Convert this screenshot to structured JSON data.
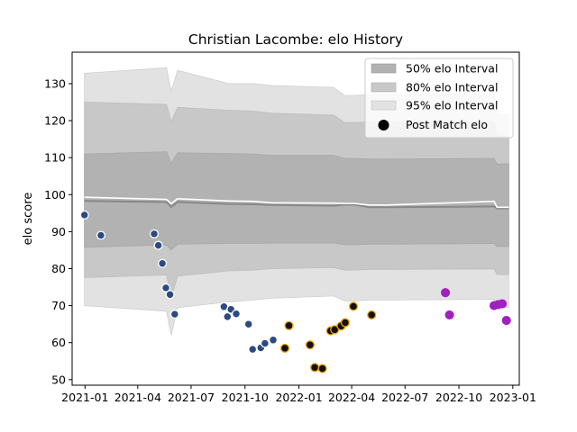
{
  "chart_data": {
    "type": "scatter",
    "title": "Christian Lacombe: elo History",
    "xlabel": "",
    "ylabel": "elo score",
    "xlim": [
      "2020-12-10",
      "2023-01-12"
    ],
    "ylim": [
      48.5,
      138.5
    ],
    "x_ticks": [
      "2021-01",
      "2021-04",
      "2021-07",
      "2021-10",
      "2022-01",
      "2022-04",
      "2022-07",
      "2022-10",
      "2023-01"
    ],
    "y_ticks": [
      50,
      60,
      70,
      80,
      90,
      100,
      110,
      120,
      130
    ],
    "grid": false,
    "legend_position": "top-right",
    "legend": [
      "50% elo Interval",
      "80% elo Interval",
      "95% elo Interval",
      "Post Match elo"
    ],
    "colors": {
      "band50": "#b2b2b2",
      "band80": "#c8c8c8",
      "band95": "#e2e2e2",
      "mean_line": "#888888",
      "upper_line": "#ffffff",
      "season1": "#2c4a80",
      "season2_fill": "#111111",
      "season2_edge": "#f0a000",
      "season3": "#a020c0"
    },
    "series": [
      {
        "name": "50% elo Interval",
        "kind": "band",
        "x": [
          "2020-12-31",
          "2021-05-20",
          "2021-05-28",
          "2021-06-08",
          "2021-09-03",
          "2021-10-15",
          "2021-11-15",
          "2022-03-01",
          "2022-03-20",
          "2022-04-05",
          "2022-05-01",
          "2022-06-01",
          "2022-11-30",
          "2022-12-05",
          "2022-12-25"
        ],
        "lower": [
          85.8,
          86.4,
          85.0,
          86.6,
          86.8,
          86.8,
          86.9,
          86.9,
          86.5,
          86.5,
          86.6,
          86.6,
          86.8,
          86.0,
          86.0
        ],
        "upper": [
          111.0,
          111.6,
          108.5,
          111.3,
          111.1,
          111.0,
          110.6,
          110.6,
          109.8,
          109.8,
          109.6,
          109.6,
          109.8,
          108.3,
          108.3
        ]
      },
      {
        "name": "80% elo Interval",
        "kind": "band",
        "x": [
          "2020-12-31",
          "2021-05-20",
          "2021-05-28",
          "2021-06-08",
          "2021-09-03",
          "2021-10-15",
          "2021-11-15",
          "2022-03-01",
          "2022-03-20",
          "2022-04-05",
          "2022-05-01",
          "2022-06-01",
          "2022-11-30",
          "2022-12-05",
          "2022-12-25"
        ],
        "lower": [
          77.6,
          78.3,
          72.0,
          78.0,
          79.4,
          79.6,
          80.0,
          80.3,
          79.6,
          79.6,
          79.8,
          79.8,
          79.9,
          78.4,
          78.4
        ],
        "upper": [
          125.0,
          124.4,
          119.8,
          123.6,
          122.8,
          122.6,
          122.0,
          121.5,
          119.5,
          119.5,
          119.6,
          119.6,
          119.8,
          115.8,
          115.8
        ]
      },
      {
        "name": "95% elo Interval",
        "kind": "band",
        "x": [
          "2020-12-31",
          "2021-05-20",
          "2021-05-28",
          "2021-06-08",
          "2021-09-03",
          "2021-10-15",
          "2021-11-15",
          "2022-03-01",
          "2022-03-20",
          "2022-04-05",
          "2022-05-01",
          "2022-06-01",
          "2022-11-30",
          "2022-12-05",
          "2022-12-25"
        ],
        "lower": [
          70.0,
          68.5,
          62.0,
          69.5,
          71.0,
          71.5,
          72.0,
          72.6,
          71.3,
          71.3,
          71.5,
          71.5,
          71.7,
          69.5,
          69.5
        ],
        "upper": [
          132.8,
          134.3,
          128.0,
          133.6,
          130.0,
          130.0,
          129.5,
          129.0,
          126.8,
          126.8,
          127.1,
          127.1,
          127.3,
          121.7,
          121.7
        ]
      },
      {
        "name": "elo mean",
        "kind": "line",
        "x": [
          "2020-12-31",
          "2021-05-20",
          "2021-05-28",
          "2021-06-08",
          "2021-09-03",
          "2021-10-15",
          "2021-11-15",
          "2022-03-01",
          "2022-03-20",
          "2022-04-05",
          "2022-05-01",
          "2022-06-01",
          "2022-11-30",
          "2022-12-05",
          "2022-12-25"
        ],
        "y": [
          98.3,
          98.0,
          96.7,
          98.0,
          97.5,
          97.4,
          97.2,
          97.0,
          97.3,
          97.3,
          96.6,
          96.6,
          96.8,
          96.3,
          96.3
        ]
      },
      {
        "name": "elo upper edge",
        "kind": "line",
        "x": [
          "2020-12-31",
          "2021-05-20",
          "2021-05-28",
          "2021-06-08",
          "2021-09-03",
          "2021-10-15",
          "2021-11-15",
          "2022-03-01",
          "2022-03-20",
          "2022-04-05",
          "2022-05-01",
          "2022-06-01",
          "2022-11-30",
          "2022-12-05",
          "2022-12-25"
        ],
        "y": [
          99.3,
          98.7,
          97.6,
          98.9,
          98.3,
          98.2,
          97.8,
          97.7,
          97.6,
          97.6,
          97.2,
          97.2,
          98.2,
          96.6,
          96.6
        ]
      },
      {
        "name": "Post Match elo",
        "kind": "points",
        "points": [
          {
            "x": "2020-12-31",
            "y": 94.5,
            "season": 1
          },
          {
            "x": "2021-01-28",
            "y": 89.0,
            "season": 1
          },
          {
            "x": "2021-04-29",
            "y": 89.4,
            "season": 1
          },
          {
            "x": "2021-05-06",
            "y": 86.3,
            "season": 1
          },
          {
            "x": "2021-05-13",
            "y": 81.4,
            "season": 1
          },
          {
            "x": "2021-05-19",
            "y": 74.8,
            "season": 1
          },
          {
            "x": "2021-05-26",
            "y": 73.0,
            "season": 1
          },
          {
            "x": "2021-06-03",
            "y": 67.7,
            "season": 1
          },
          {
            "x": "2021-08-26",
            "y": 69.7,
            "season": 1
          },
          {
            "x": "2021-09-01",
            "y": 67.0,
            "season": 1
          },
          {
            "x": "2021-09-07",
            "y": 69.0,
            "season": 1
          },
          {
            "x": "2021-09-16",
            "y": 67.8,
            "season": 1
          },
          {
            "x": "2021-10-07",
            "y": 65.0,
            "season": 1
          },
          {
            "x": "2021-10-14",
            "y": 58.2,
            "season": 1
          },
          {
            "x": "2021-10-28",
            "y": 58.6,
            "season": 1
          },
          {
            "x": "2021-11-04",
            "y": 59.8,
            "season": 1
          },
          {
            "x": "2021-11-18",
            "y": 60.7,
            "season": 1
          },
          {
            "x": "2021-12-08",
            "y": 58.5,
            "season": 2
          },
          {
            "x": "2021-12-15",
            "y": 64.6,
            "season": 2
          },
          {
            "x": "2022-01-20",
            "y": 59.4,
            "season": 2
          },
          {
            "x": "2022-01-28",
            "y": 53.3,
            "season": 2
          },
          {
            "x": "2022-02-10",
            "y": 53.0,
            "season": 2
          },
          {
            "x": "2022-02-24",
            "y": 63.2,
            "season": 2
          },
          {
            "x": "2022-03-03",
            "y": 63.5,
            "season": 2
          },
          {
            "x": "2022-03-14",
            "y": 64.5,
            "season": 2
          },
          {
            "x": "2022-03-21",
            "y": 65.4,
            "season": 2
          },
          {
            "x": "2022-04-04",
            "y": 69.8,
            "season": 2
          },
          {
            "x": "2022-05-05",
            "y": 67.5,
            "season": 2
          },
          {
            "x": "2022-09-08",
            "y": 73.5,
            "season": 3
          },
          {
            "x": "2022-09-15",
            "y": 67.5,
            "season": 3
          },
          {
            "x": "2022-11-30",
            "y": 70.0,
            "season": 3
          },
          {
            "x": "2022-12-07",
            "y": 70.3,
            "season": 3
          },
          {
            "x": "2022-12-14",
            "y": 70.5,
            "season": 3
          },
          {
            "x": "2022-12-21",
            "y": 66.0,
            "season": 3
          }
        ]
      }
    ]
  }
}
